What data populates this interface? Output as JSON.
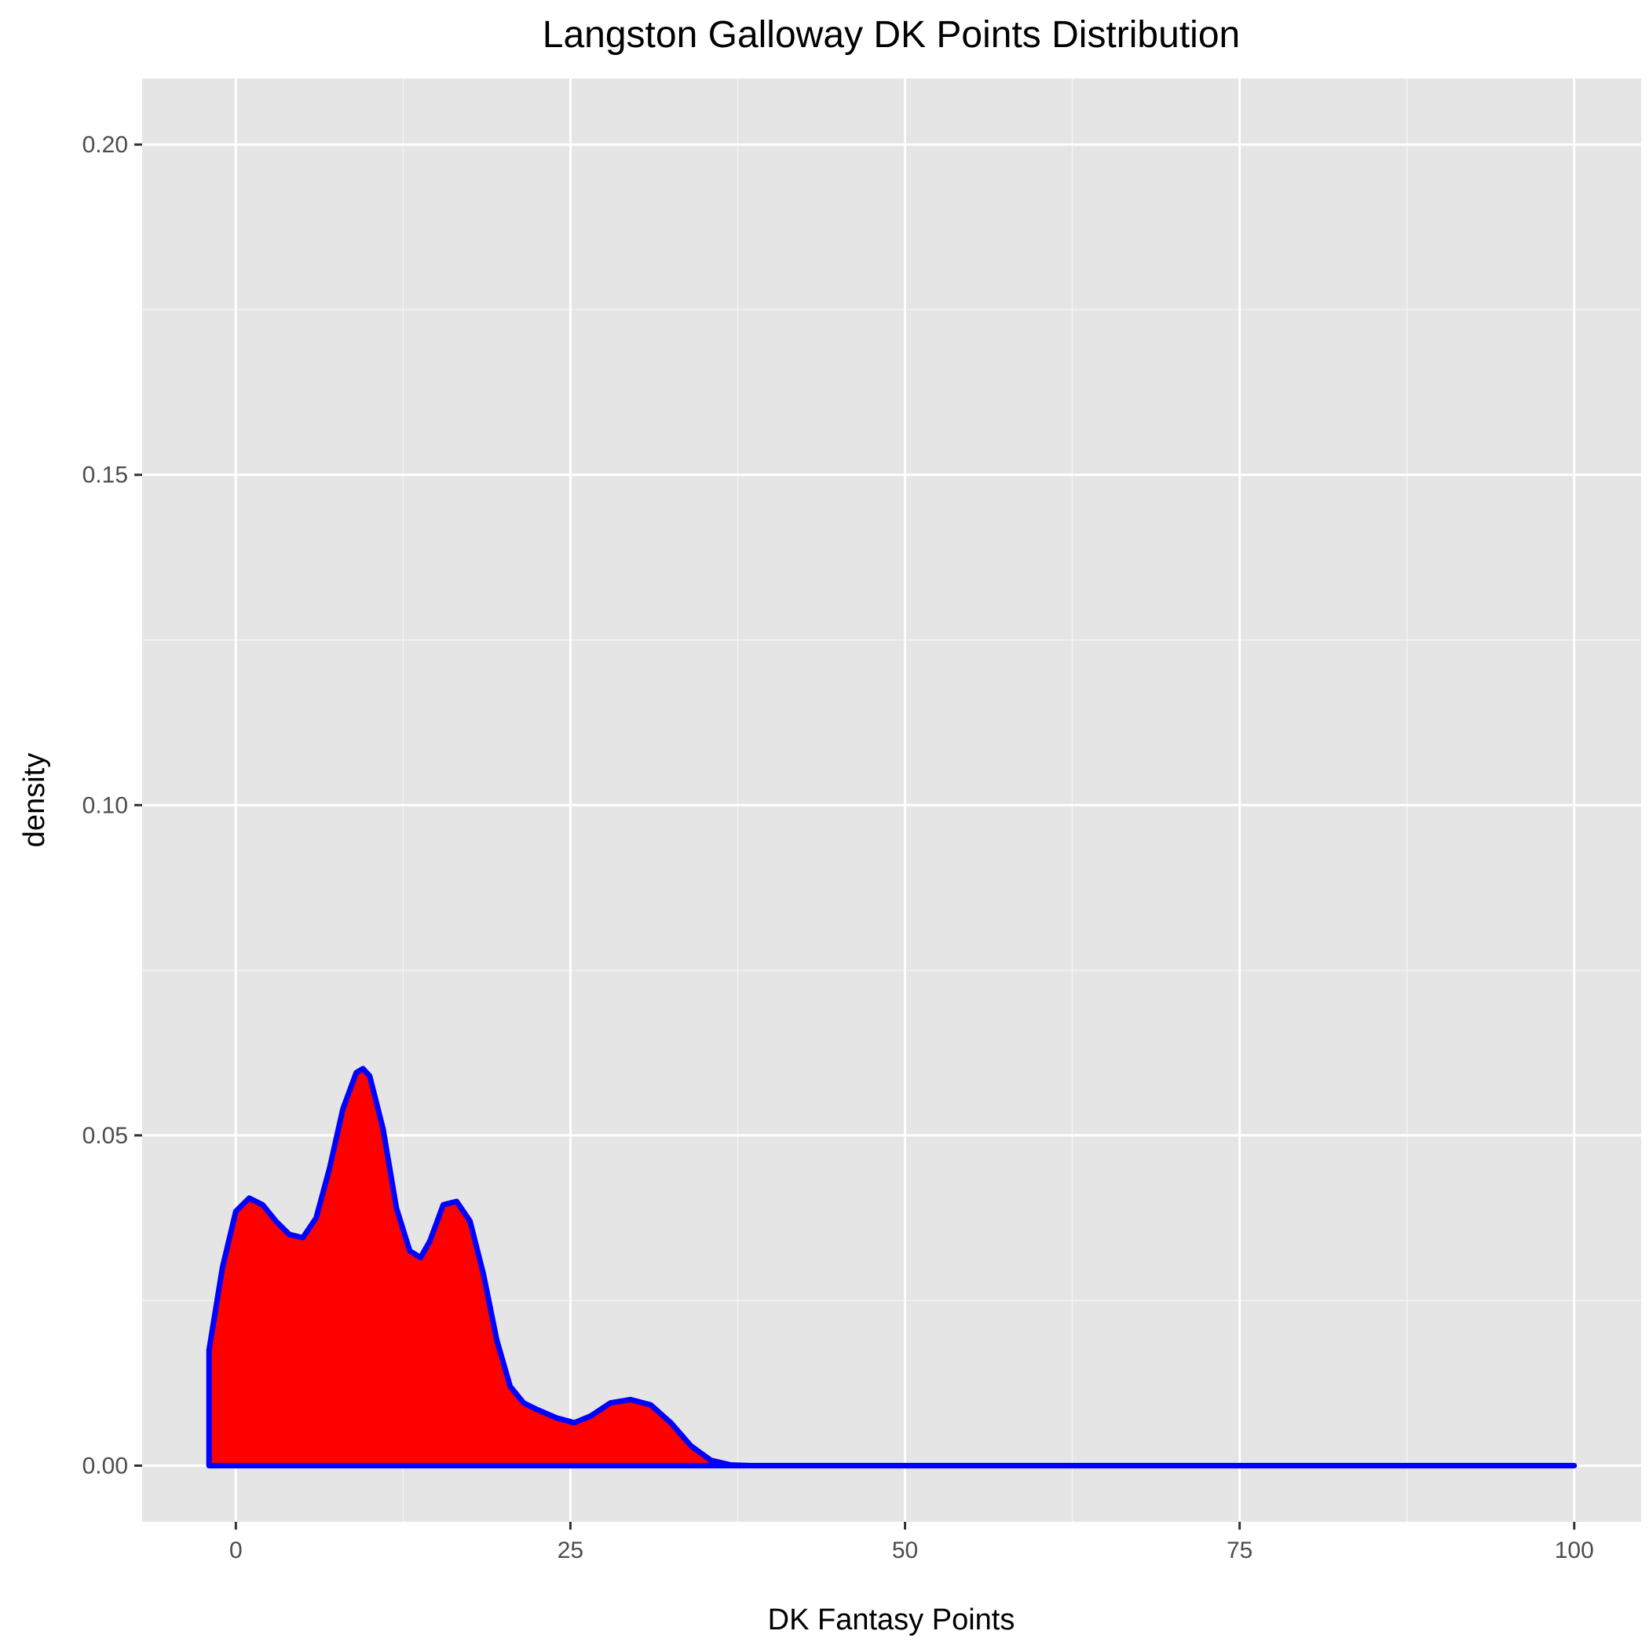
{
  "chart_data": {
    "type": "area",
    "title": "Langston Galloway DK Points Distribution",
    "xlabel": "DK Fantasy Points",
    "ylabel": "density",
    "xlim": [
      -7,
      105
    ],
    "ylim": [
      -0.0085,
      0.21
    ],
    "x_ticks": [
      0,
      25,
      50,
      75,
      100
    ],
    "x_tick_labels": [
      "0",
      "25",
      "50",
      "75",
      "100"
    ],
    "y_ticks": [
      0.0,
      0.05,
      0.1,
      0.15,
      0.2
    ],
    "y_tick_labels": [
      "0.00",
      "0.05",
      "0.10",
      "0.15",
      "0.20"
    ],
    "grid": true,
    "legend": "none",
    "fill_color": "#ff0000",
    "line_color": "#0000ff",
    "panel_color": "#e5e5e5",
    "series": [
      {
        "x": [
          -2.0,
          -1.0,
          0.0,
          1.0,
          2.0,
          3.0,
          4.0,
          5.0,
          6.0,
          7.0,
          8.0,
          9.0,
          9.5,
          10.0,
          11.0,
          12.0,
          13.0,
          13.8,
          14.5,
          15.5,
          16.5,
          17.5,
          18.5,
          19.5,
          20.5,
          21.5,
          22.5,
          24.0,
          25.3,
          26.5,
          28.0,
          29.5,
          31.0,
          32.5,
          34.0,
          35.5,
          37.0,
          38.5,
          40.0,
          45.0,
          50.0,
          60.0,
          70.0,
          80.0,
          90.0,
          100.0
        ],
        "y": [
          0.0175,
          0.03,
          0.0385,
          0.0405,
          0.0395,
          0.037,
          0.035,
          0.0345,
          0.0375,
          0.045,
          0.054,
          0.0595,
          0.0601,
          0.059,
          0.051,
          0.039,
          0.0325,
          0.0315,
          0.034,
          0.0395,
          0.04,
          0.037,
          0.029,
          0.019,
          0.012,
          0.0095,
          0.0085,
          0.0072,
          0.0065,
          0.0075,
          0.0095,
          0.01,
          0.0092,
          0.0065,
          0.003,
          0.0008,
          0.0001,
          0.0,
          0.0,
          0.0,
          0.0,
          0.0,
          0.0,
          0.0,
          0.0,
          0.0
        ]
      }
    ]
  }
}
